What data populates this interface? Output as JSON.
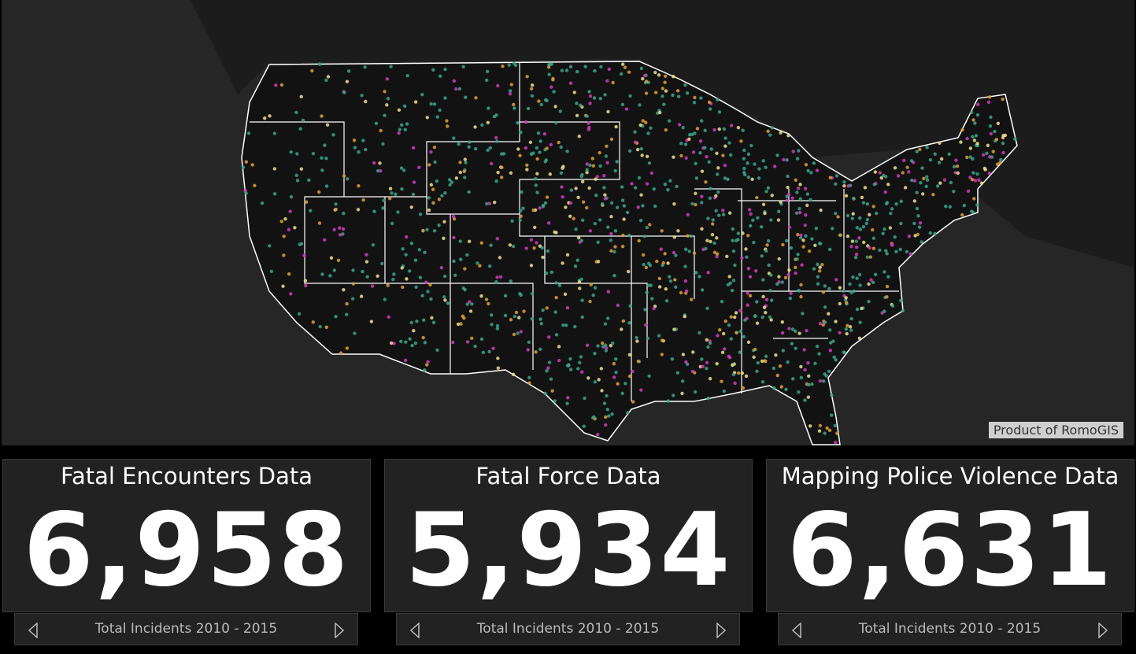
{
  "map": {
    "attribution": "Product of RomoGIS"
  },
  "cards": [
    {
      "title": "Fatal Encounters Data",
      "value": "6,958",
      "footer": "Total Incidents 2010 - 2015"
    },
    {
      "title": "Fatal Force Data",
      "value": "5,934",
      "footer": "Total Incidents 2010 - 2015"
    },
    {
      "title": "Mapping Police Violence Data",
      "value": "6,631",
      "footer": "Total Incidents 2010 - 2015"
    }
  ]
}
